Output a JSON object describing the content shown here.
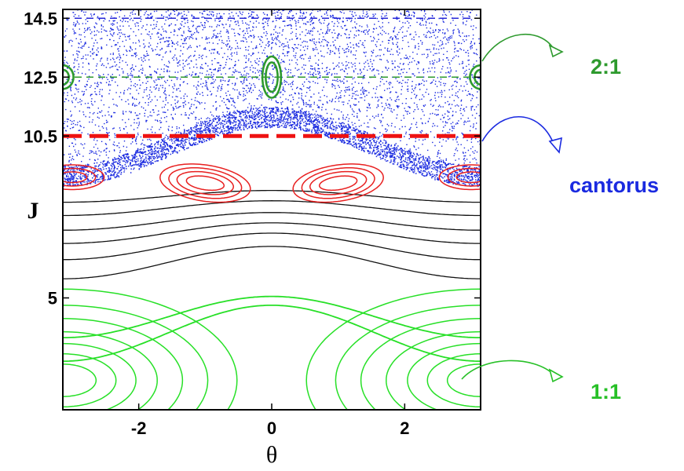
{
  "chart_data": {
    "type": "scatter",
    "title": "",
    "xlabel": "θ",
    "ylabel": "J",
    "xlim": [
      -3.1416,
      3.1416
    ],
    "ylim": [
      1.2,
      14.8
    ],
    "x_ticks": [
      {
        "value": -2,
        "label": "-2"
      },
      {
        "value": 0,
        "label": "0"
      },
      {
        "value": 2,
        "label": "2"
      }
    ],
    "y_ticks": [
      {
        "value": 5,
        "label": "5"
      },
      {
        "value": 10.5,
        "label": "10.5"
      },
      {
        "value": 12.5,
        "label": "12.5"
      },
      {
        "value": 14.5,
        "label": "14.5"
      }
    ],
    "grid": false,
    "legend": "none",
    "reference_lines": [
      {
        "y": 14.5,
        "color": "#2828d8",
        "style": "dashed"
      },
      {
        "y": 12.5,
        "color": "#2e9a2e",
        "style": "dashed"
      },
      {
        "y": 10.5,
        "color": "#ee1111",
        "style": "thick-dashed"
      }
    ],
    "series": [
      {
        "color": "#27e027",
        "family": "1:1 resonance",
        "curves": [
          {
            "kind": "libration",
            "center": [
              3.1416,
              2.2
            ],
            "a_theta": [
              0.5,
              0.8,
              1.1,
              1.42,
              1.8,
              2.18,
              2.62
            ],
            "b_J": [
              0.55,
              0.9,
              1.25,
              1.65,
              2.1,
              2.55,
              3.1
            ]
          },
          {
            "kind": "libration",
            "center": [
              -3.1416,
              2.2
            ],
            "a_theta": [
              0.5,
              0.8,
              1.1,
              1.42,
              1.8,
              2.18,
              2.62
            ],
            "b_J": [
              0.55,
              0.9,
              1.25,
              1.65,
              2.1,
              2.55,
              3.1
            ]
          },
          {
            "kind": "rotation",
            "J0": [
              3.8,
              4.35
            ],
            "amplitude": [
              0.95,
              0.7
            ]
          }
        ]
      },
      {
        "color": "#111111",
        "family": "KAM tori",
        "curves": [
          {
            "kind": "rotation",
            "J0": [
              6.2,
              6.75,
              7.2,
              7.6,
              8.05,
              8.45
            ],
            "amplitude": [
              0.55,
              0.45,
              0.35,
              0.3,
              0.25,
              0.2
            ]
          }
        ]
      },
      {
        "color": "#e82020",
        "family": "secondary islands",
        "curves": [
          {
            "kind": "libration",
            "center": [
              -1.0,
              8.9
            ],
            "a_theta": [
              0.3,
              0.45,
              0.58,
              0.72
            ],
            "b_J": [
              0.22,
              0.36,
              0.48,
              0.6
            ],
            "tilt": -0.35
          },
          {
            "kind": "libration",
            "center": [
              1.0,
              8.9
            ],
            "a_theta": [
              0.3,
              0.45,
              0.58,
              0.72
            ],
            "b_J": [
              0.22,
              0.36,
              0.48,
              0.6
            ],
            "tilt": 0.35
          },
          {
            "kind": "libration",
            "center": [
              -3.0,
              9.1
            ],
            "a_theta": [
              0.22,
              0.35,
              0.48
            ],
            "b_J": [
              0.18,
              0.3,
              0.42
            ]
          },
          {
            "kind": "libration",
            "center": [
              3.0,
              9.1
            ],
            "a_theta": [
              0.22,
              0.35,
              0.48
            ],
            "b_J": [
              0.18,
              0.3,
              0.42
            ]
          }
        ]
      },
      {
        "color": "#2e9a2e",
        "family": "2:1 resonance",
        "curves": [
          {
            "kind": "libration",
            "center": [
              0,
              12.5
            ],
            "a_theta": [
              0.09,
              0.14
            ],
            "b_J": [
              0.5,
              0.7
            ]
          },
          {
            "kind": "libration",
            "center": [
              -3.1416,
              12.5
            ],
            "a_theta": [
              0.09,
              0.16
            ],
            "b_J": [
              0.25,
              0.4
            ]
          },
          {
            "kind": "libration",
            "center": [
              3.1416,
              12.5
            ],
            "a_theta": [
              0.09,
              0.16
            ],
            "b_J": [
              0.25,
              0.4
            ]
          }
        ]
      },
      {
        "color": "#1a2ae0",
        "family": "chaotic sea",
        "points": "dense scatter, J from 9.8 to 14.8, lower boundary J = 9.8 + 1.0*cos(θ)"
      }
    ]
  },
  "annotations": {
    "two_one": {
      "text": "2:1",
      "color": "#2e9a2e"
    },
    "cantorus": {
      "text": "cantorus",
      "color": "#1a2ae0"
    },
    "one_one": {
      "text": "1:1",
      "color": "#27c027"
    }
  }
}
